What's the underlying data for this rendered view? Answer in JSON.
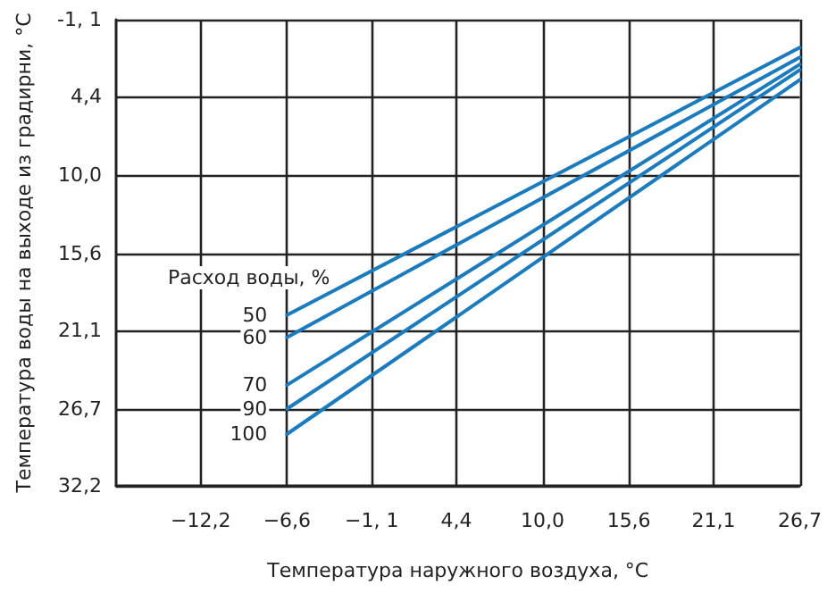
{
  "chart_data": {
    "type": "line",
    "xlabel": "Температура наружного воздуха, °C",
    "ylabel": "Температура воды на выходе из градирни, °C",
    "legend_title": "Расход воды, %",
    "x": [
      -6.6,
      26.7
    ],
    "series": [
      {
        "name": "50",
        "color": "#1a7bbf",
        "values": [
          20.0,
          0.9
        ]
      },
      {
        "name": "60",
        "color": "#1a7bbf",
        "values": [
          21.6,
          1.6
        ]
      },
      {
        "name": "70",
        "color": "#1a7bbf",
        "values": [
          25.0,
          2.1
        ]
      },
      {
        "name": "90",
        "color": "#1a7bbf",
        "values": [
          26.7,
          2.5
        ]
      },
      {
        "name": "100",
        "color": "#1a7bbf",
        "values": [
          28.5,
          3.2
        ]
      }
    ],
    "xlim": [
      -17.7,
      26.7
    ],
    "xticks": [
      {
        "value": -12.2,
        "label": "−12,2"
      },
      {
        "value": -6.6,
        "label": "−6,6"
      },
      {
        "value": -1.1,
        "label": "−1, 1"
      },
      {
        "value": 4.4,
        "label": "4,4"
      },
      {
        "value": 10.0,
        "label": "10,0"
      },
      {
        "value": 15.6,
        "label": "15,6"
      },
      {
        "value": 21.1,
        "label": "21,1"
      },
      {
        "value": 26.7,
        "label": "26,7"
      }
    ],
    "ylim": [
      32.2,
      -1.1
    ],
    "yticks": [
      {
        "value": -1.1,
        "label": "-1, 1"
      },
      {
        "value": 4.4,
        "label": "4,4"
      },
      {
        "value": 10.0,
        "label": "10,0"
      },
      {
        "value": 15.6,
        "label": "15,6"
      },
      {
        "value": 21.1,
        "label": "21,1"
      },
      {
        "value": 26.7,
        "label": "26,7"
      },
      {
        "value": 32.2,
        "label": "32,2"
      }
    ],
    "grid": true,
    "legend": false,
    "marker": "none",
    "line_style": "solid"
  }
}
